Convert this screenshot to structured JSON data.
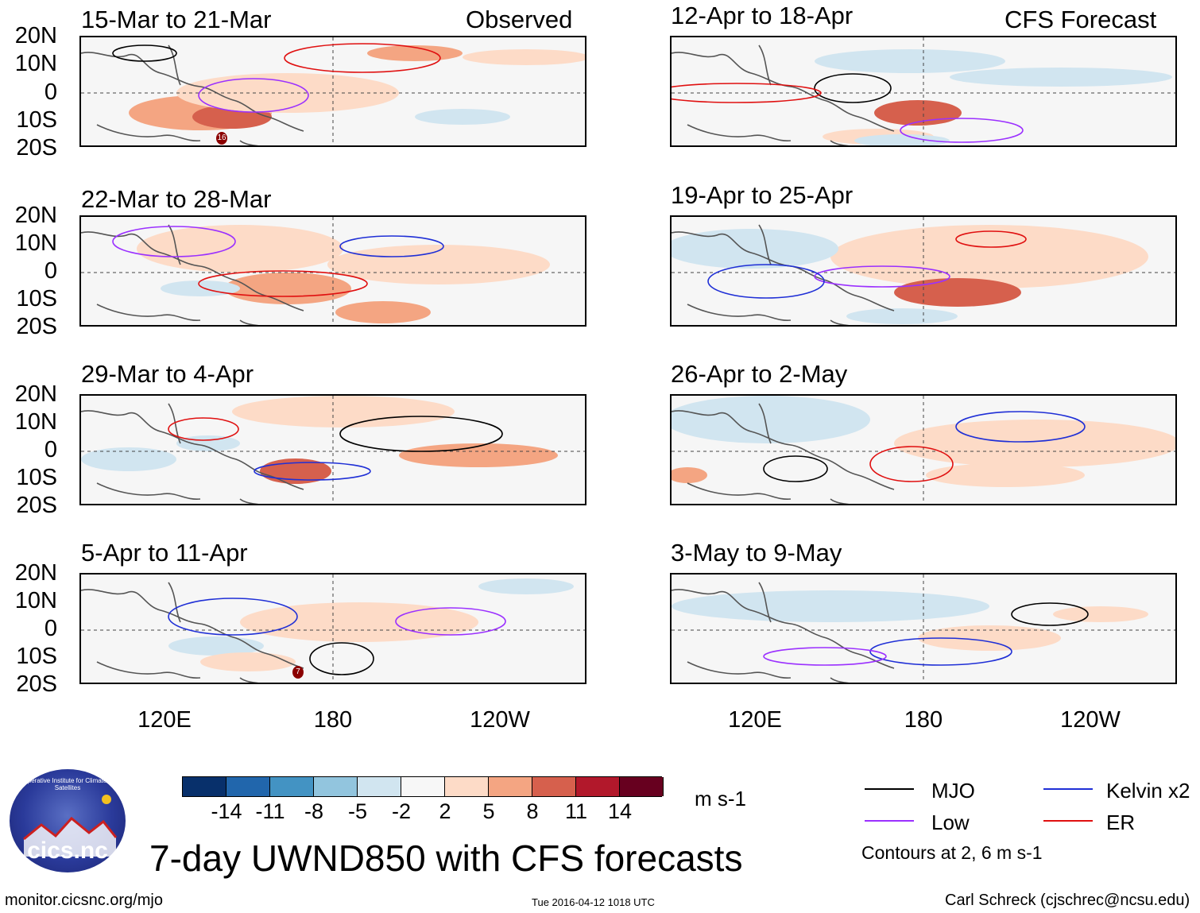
{
  "columns": {
    "left_label": "Observed",
    "right_label": "CFS Forecast"
  },
  "panels": {
    "left": [
      {
        "title": "15-Mar to 21-Mar"
      },
      {
        "title": "22-Mar to 28-Mar"
      },
      {
        "title": "29-Mar to 4-Apr"
      },
      {
        "title": "5-Apr to 11-Apr"
      }
    ],
    "right": [
      {
        "title": "12-Apr to 18-Apr"
      },
      {
        "title": "19-Apr to 25-Apr"
      },
      {
        "title": "26-Apr to 2-May"
      },
      {
        "title": "3-May to 9-May"
      }
    ]
  },
  "latitude_labels": [
    "20N",
    "10N",
    "0",
    "10S",
    "20S"
  ],
  "longitude_labels": [
    "120E",
    "180",
    "120W"
  ],
  "marker_labels": {
    "storm_a": "16",
    "storm_b": "7"
  },
  "colorbar": {
    "colors": [
      "#08306b",
      "#2166ac",
      "#4393c3",
      "#92c5de",
      "#d1e5f0",
      "#f7f7f7",
      "#fddbc7",
      "#f4a582",
      "#d6604d",
      "#b2182b",
      "#67001f"
    ],
    "ticks": [
      "-14",
      "-11",
      "-8",
      "-5",
      "-2",
      "2",
      "5",
      "8",
      "11",
      "14"
    ],
    "units": "m s-1"
  },
  "legend": {
    "items": [
      {
        "label": "MJO",
        "color": "#000000"
      },
      {
        "label": "Kelvin x2",
        "color": "#1f2fd6"
      },
      {
        "label": "Low",
        "color": "#9b30ff"
      },
      {
        "label": "ER",
        "color": "#e01010"
      }
    ],
    "contour_note": "Contours at 2, 6 m s-1"
  },
  "main_title": "7-day UWND850 with CFS forecasts",
  "logo": {
    "text": "cics.nc",
    "ring_text": "Cooperative Institute for Climate and Satellites"
  },
  "footer": {
    "website": "monitor.cicsnc.org/mjo",
    "timestamp": "Tue 2016-04-12 1018 UTC",
    "author": "Carl Schreck (cjschrec@ncsu.edu)"
  }
}
